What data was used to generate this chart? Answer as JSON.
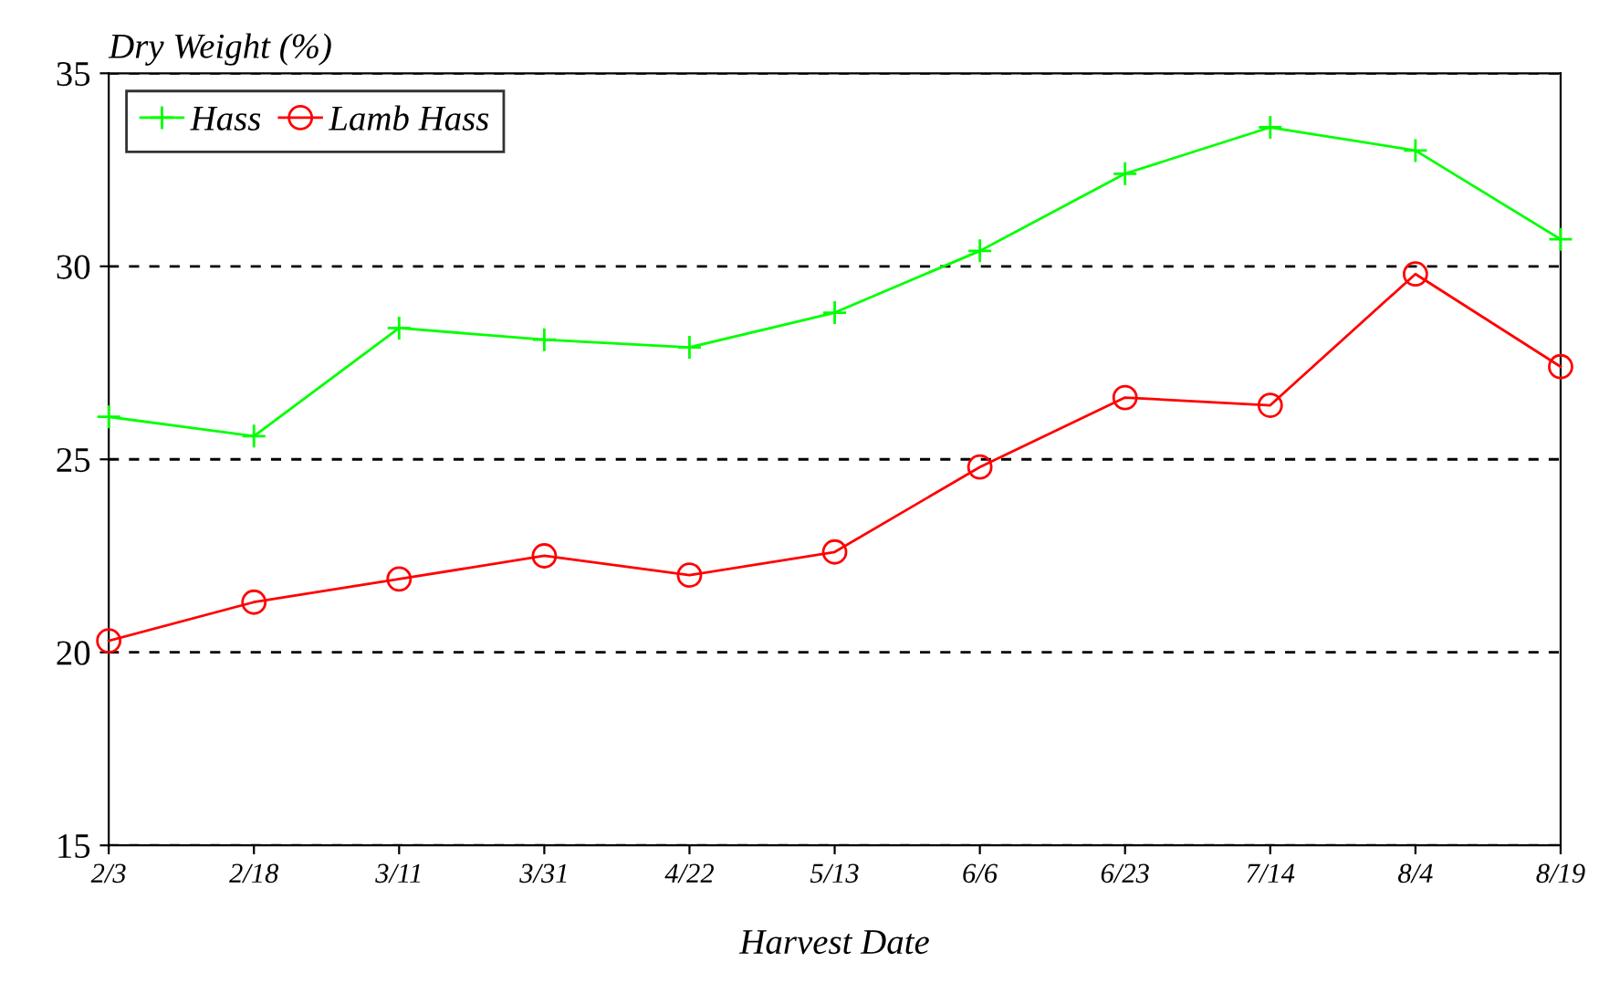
{
  "chart_data": {
    "type": "line",
    "ylabel": "Dry Weight (%)",
    "xlabel": "Harvest Date",
    "categories": [
      "2/3",
      "2/18",
      "3/11",
      "3/31",
      "4/22",
      "5/13",
      "6/6",
      "6/23",
      "7/14",
      "8/4",
      "8/19"
    ],
    "series": [
      {
        "name": "Hass",
        "color": "#00ff00",
        "marker": "cross",
        "values": [
          26.1,
          25.6,
          28.4,
          28.1,
          27.9,
          28.8,
          30.4,
          32.4,
          33.6,
          33.0,
          30.7
        ]
      },
      {
        "name": "Lamb Hass",
        "color": "#ff0000",
        "marker": "circle",
        "values": [
          20.3,
          21.3,
          21.9,
          22.5,
          22.0,
          22.6,
          24.8,
          26.6,
          26.4,
          29.8,
          27.4
        ]
      }
    ],
    "ylim": [
      15,
      35
    ],
    "yticks": [
      15,
      20,
      25,
      30,
      35
    ],
    "grid": "y",
    "legend": "top left",
    "line_style": "solid"
  }
}
